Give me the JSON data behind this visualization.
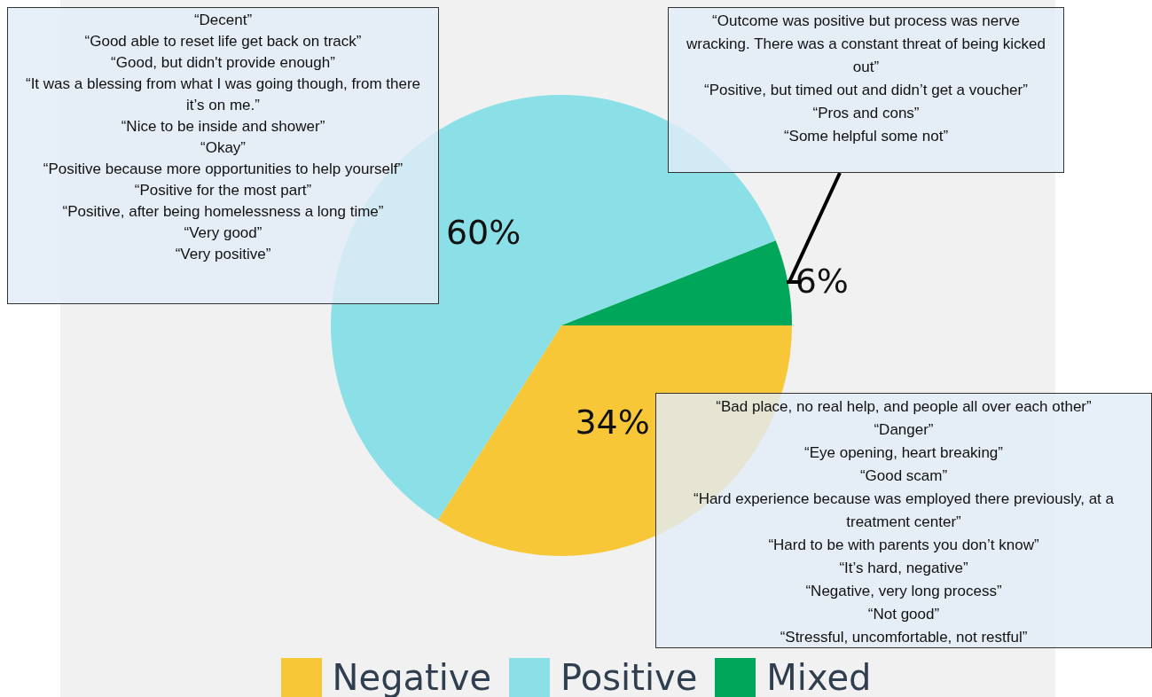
{
  "chart_data": {
    "type": "pie",
    "categories": [
      "Negative",
      "Positive",
      "Mixed"
    ],
    "values": [
      34,
      60,
      6
    ],
    "colors": [
      "#f7c737",
      "#8ae0e6",
      "#00a65a"
    ],
    "value_labels": [
      "34%",
      "60%",
      "6%"
    ],
    "legend": "bottom",
    "annotations": [
      "“Decent”\n“Good able to reset life get back on track”\n“Good, but didn't provide enough”\n“It was a blessing from what I was going though, from there it’s on me.”\n“Nice to be inside and shower”\n“Okay”\n“Positive because more opportunities to help yourself”\n“Positive for the most part”\n“Positive, after being homelessness a long time”\n“Very good”\n“Very positive”",
      "“Outcome was positive but process was nerve wracking.  There was a constant threat of being kicked out”\n“Positive, but timed out and didn’t get a voucher”\n“Pros and cons”\n“Some helpful some not”",
      "“Bad place, no real help, and people all over each other”\n“Danger”\n“Eye opening, heart breaking”\n“Good scam”\n“Hard experience because was employed there previously, at a treatment center”\n“Hard to be with parents you don’t know”\n“It’s hard, negative”\n“Negative, very long process”\n“Not good”\n“Stressful, uncomfortable, not restful”"
    ]
  }
}
